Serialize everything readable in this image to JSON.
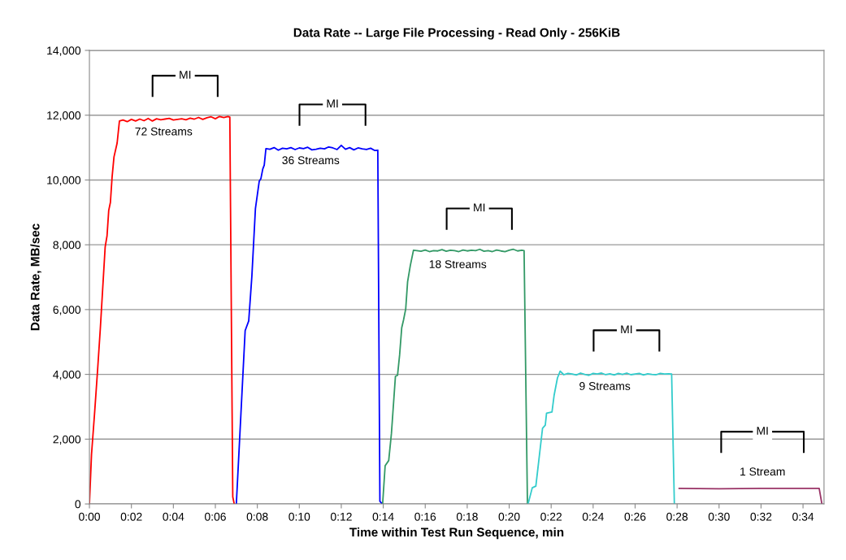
{
  "chart_data": {
    "type": "line",
    "title": "Data Rate -- Large File Processing - Read Only - 256KiB",
    "xlabel": "Time within Test Run Sequence, min",
    "ylabel": "Data Rate, MB/sec",
    "xlim": [
      0,
      35
    ],
    "xticks": [
      {
        "value": 0,
        "label": "0:00"
      },
      {
        "value": 2,
        "label": "0:02"
      },
      {
        "value": 4,
        "label": "0:04"
      },
      {
        "value": 6,
        "label": "0:06"
      },
      {
        "value": 8,
        "label": "0:08"
      },
      {
        "value": 10,
        "label": "0:10"
      },
      {
        "value": 12,
        "label": "0:12"
      },
      {
        "value": 14,
        "label": "0:14"
      },
      {
        "value": 16,
        "label": "0:16"
      },
      {
        "value": 18,
        "label": "0:18"
      },
      {
        "value": 20,
        "label": "0:20"
      },
      {
        "value": 22,
        "label": "0:22"
      },
      {
        "value": 24,
        "label": "0:24"
      },
      {
        "value": 26,
        "label": "0:26"
      },
      {
        "value": 28,
        "label": "0:28"
      },
      {
        "value": 30,
        "label": "0:30"
      },
      {
        "value": 32,
        "label": "0:32"
      },
      {
        "value": 34,
        "label": "0:34"
      }
    ],
    "ylim": [
      0,
      14000
    ],
    "yticks": [
      0,
      {
        "value": 2000,
        "label": "2,000"
      },
      {
        "value": 4000,
        "label": "4,000"
      },
      {
        "value": 6000,
        "label": "6,000"
      },
      {
        "value": 8000,
        "label": "8,000"
      },
      {
        "value": 10000,
        "label": "10,000"
      },
      {
        "value": 12000,
        "label": "12,000"
      },
      {
        "value": 14000,
        "label": "14,000"
      }
    ],
    "grid": "y",
    "marker": "none",
    "line_style": "solid",
    "series": [
      {
        "color": "#ff0000",
        "x": [
          0,
          0.1,
          0.25,
          0.39,
          0.52,
          0.75,
          0.84,
          0.92,
          1.0,
          1.08,
          1.17,
          1.32,
          1.43,
          1.6,
          1.8,
          2.0,
          2.2,
          2.4,
          2.6,
          2.8,
          3.0,
          3.2,
          3.4,
          3.6,
          3.8,
          4.0,
          4.2,
          4.4,
          4.6,
          4.8,
          5.0,
          5.2,
          5.4,
          5.6,
          5.8,
          6.0,
          6.2,
          6.4,
          6.6,
          6.69,
          6.83,
          6.9
        ],
        "values": [
          0,
          1530,
          2840,
          4140,
          5420,
          7930,
          8280,
          9060,
          9310,
          10090,
          10710,
          11140,
          11820,
          11850,
          11800,
          11870,
          11820,
          11880,
          11830,
          11900,
          11820,
          11890,
          11860,
          11880,
          11900,
          11850,
          11870,
          11890,
          11860,
          11910,
          11880,
          11930,
          11870,
          11920,
          11950,
          11890,
          11960,
          11930,
          11960,
          11940,
          220,
          0
        ]
      },
      {
        "color": "#0000ff",
        "x": [
          7.0,
          7.42,
          7.59,
          7.74,
          7.91,
          8.09,
          8.17,
          8.26,
          8.33,
          8.41,
          8.6,
          8.8,
          9.0,
          9.2,
          9.4,
          9.6,
          9.8,
          10.0,
          10.2,
          10.4,
          10.6,
          10.8,
          11.0,
          11.2,
          11.4,
          11.6,
          11.8,
          12.0,
          12.2,
          12.4,
          12.6,
          12.8,
          13.0,
          13.2,
          13.4,
          13.6,
          13.74,
          13.84,
          13.96
        ],
        "values": [
          0,
          5350,
          5650,
          7030,
          9120,
          9960,
          10040,
          10340,
          10460,
          10970,
          10950,
          11000,
          10920,
          10980,
          10960,
          11000,
          10940,
          10990,
          10970,
          11010,
          10930,
          10950,
          10980,
          10960,
          11020,
          10990,
          10940,
          11070,
          10950,
          11000,
          10930,
          10990,
          10960,
          10940,
          10980,
          10910,
          10920,
          80,
          0
        ]
      },
      {
        "color": "#339966",
        "x": [
          13.97,
          14.09,
          14.26,
          14.39,
          14.58,
          14.68,
          14.78,
          14.88,
          14.97,
          15.07,
          15.16,
          15.29,
          15.44,
          15.6,
          15.8,
          16.0,
          16.2,
          16.4,
          16.6,
          16.8,
          17.0,
          17.2,
          17.4,
          17.6,
          17.8,
          18.0,
          18.2,
          18.4,
          18.6,
          18.8,
          19.0,
          19.2,
          19.4,
          19.6,
          19.8,
          20.0,
          20.2,
          20.4,
          20.6,
          20.71,
          20.87
        ],
        "values": [
          0,
          1180,
          1340,
          2180,
          3940,
          3970,
          4600,
          5440,
          5690,
          6020,
          6860,
          7360,
          7830,
          7820,
          7800,
          7840,
          7790,
          7820,
          7810,
          7850,
          7800,
          7830,
          7820,
          7790,
          7840,
          7810,
          7830,
          7820,
          7860,
          7800,
          7820,
          7790,
          7840,
          7810,
          7790,
          7830,
          7860,
          7810,
          7830,
          7820,
          0
        ]
      },
      {
        "color": "#33cccc",
        "x": [
          20.9,
          21.1,
          21.27,
          21.59,
          21.72,
          21.78,
          22.04,
          22.14,
          22.3,
          22.43,
          22.6,
          22.8,
          23.0,
          23.2,
          23.4,
          23.6,
          23.8,
          24.0,
          24.2,
          24.4,
          24.6,
          24.8,
          25.0,
          25.2,
          25.4,
          25.6,
          25.8,
          26.0,
          26.2,
          26.4,
          26.6,
          26.8,
          27.0,
          27.2,
          27.4,
          27.6,
          27.74,
          27.87
        ],
        "values": [
          0,
          500,
          550,
          2340,
          2430,
          2800,
          2840,
          3350,
          3890,
          4100,
          3990,
          4030,
          4010,
          3980,
          4040,
          4000,
          3970,
          4030,
          4010,
          4040,
          3990,
          4020,
          3980,
          4030,
          4000,
          4040,
          3990,
          4010,
          4030,
          3980,
          4020,
          4000,
          3990,
          4030,
          4010,
          4020,
          4010,
          0
        ]
      },
      {
        "color": "#993366",
        "x": [
          28.1,
          30,
          32,
          34,
          34.77,
          34.9
        ],
        "values": [
          480,
          470,
          480,
          480,
          480,
          0
        ]
      }
    ],
    "annotations": [
      "MI",
      "72 Streams",
      "MI",
      "36 Streams",
      "MI",
      "18 Streams",
      "MI",
      "9 Streams",
      "MI",
      "1 Stream"
    ]
  }
}
